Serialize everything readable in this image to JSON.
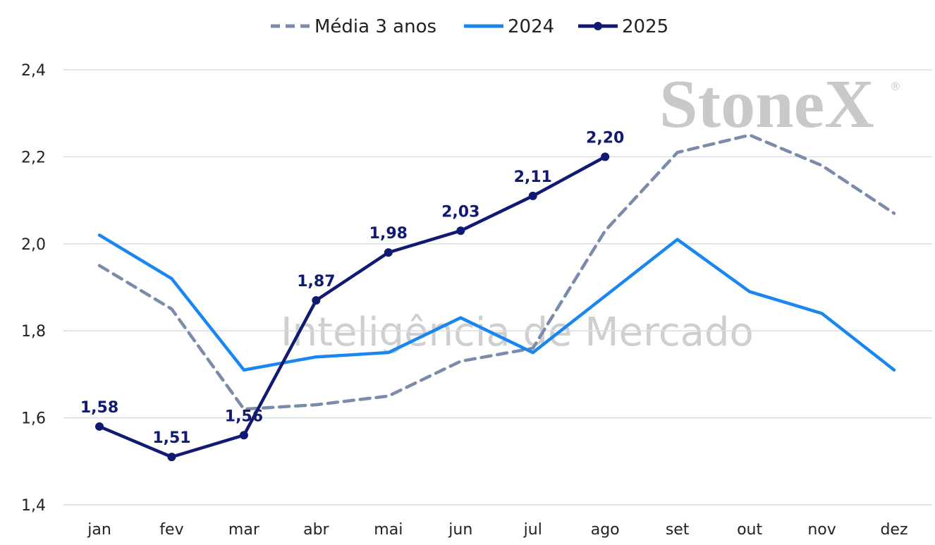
{
  "chart_data": {
    "type": "line",
    "title": "",
    "xlabel": "",
    "ylabel": "",
    "categories": [
      "jan",
      "fev",
      "mar",
      "abr",
      "mai",
      "jun",
      "jul",
      "ago",
      "set",
      "out",
      "nov",
      "dez"
    ],
    "ylim": [
      1.4,
      2.4
    ],
    "yticks": [
      1.4,
      1.6,
      1.8,
      2.0,
      2.2,
      2.4
    ],
    "ytick_labels": [
      "1,4",
      "1,6",
      "1,8",
      "2,0",
      "2,2",
      "2,4"
    ],
    "grid": true,
    "legend_position": "top-center",
    "series": [
      {
        "name": "Média 3 anos",
        "color": "#7b8cab",
        "style": "dashed",
        "values": [
          1.95,
          1.85,
          1.62,
          1.63,
          1.65,
          1.73,
          1.76,
          2.03,
          2.21,
          2.25,
          2.18,
          2.07
        ]
      },
      {
        "name": "2024",
        "color": "#1a86f0",
        "style": "solid",
        "values": [
          2.02,
          1.92,
          1.71,
          1.74,
          1.75,
          1.83,
          1.75,
          1.88,
          2.01,
          1.89,
          1.84,
          1.71
        ]
      },
      {
        "name": "2025",
        "color": "#111a72",
        "style": "solid-markers",
        "values": [
          1.58,
          1.51,
          1.56,
          1.87,
          1.98,
          2.03,
          2.11,
          2.2,
          null,
          null,
          null,
          null
        ],
        "data_labels": [
          "1,58",
          "1,51",
          "1,56",
          "1,87",
          "1,98",
          "2,03",
          "2,11",
          "2,20"
        ]
      }
    ]
  },
  "watermark": {
    "brand": "StoneX",
    "registered": "®",
    "subtitle": "Inteligência de Mercado"
  }
}
